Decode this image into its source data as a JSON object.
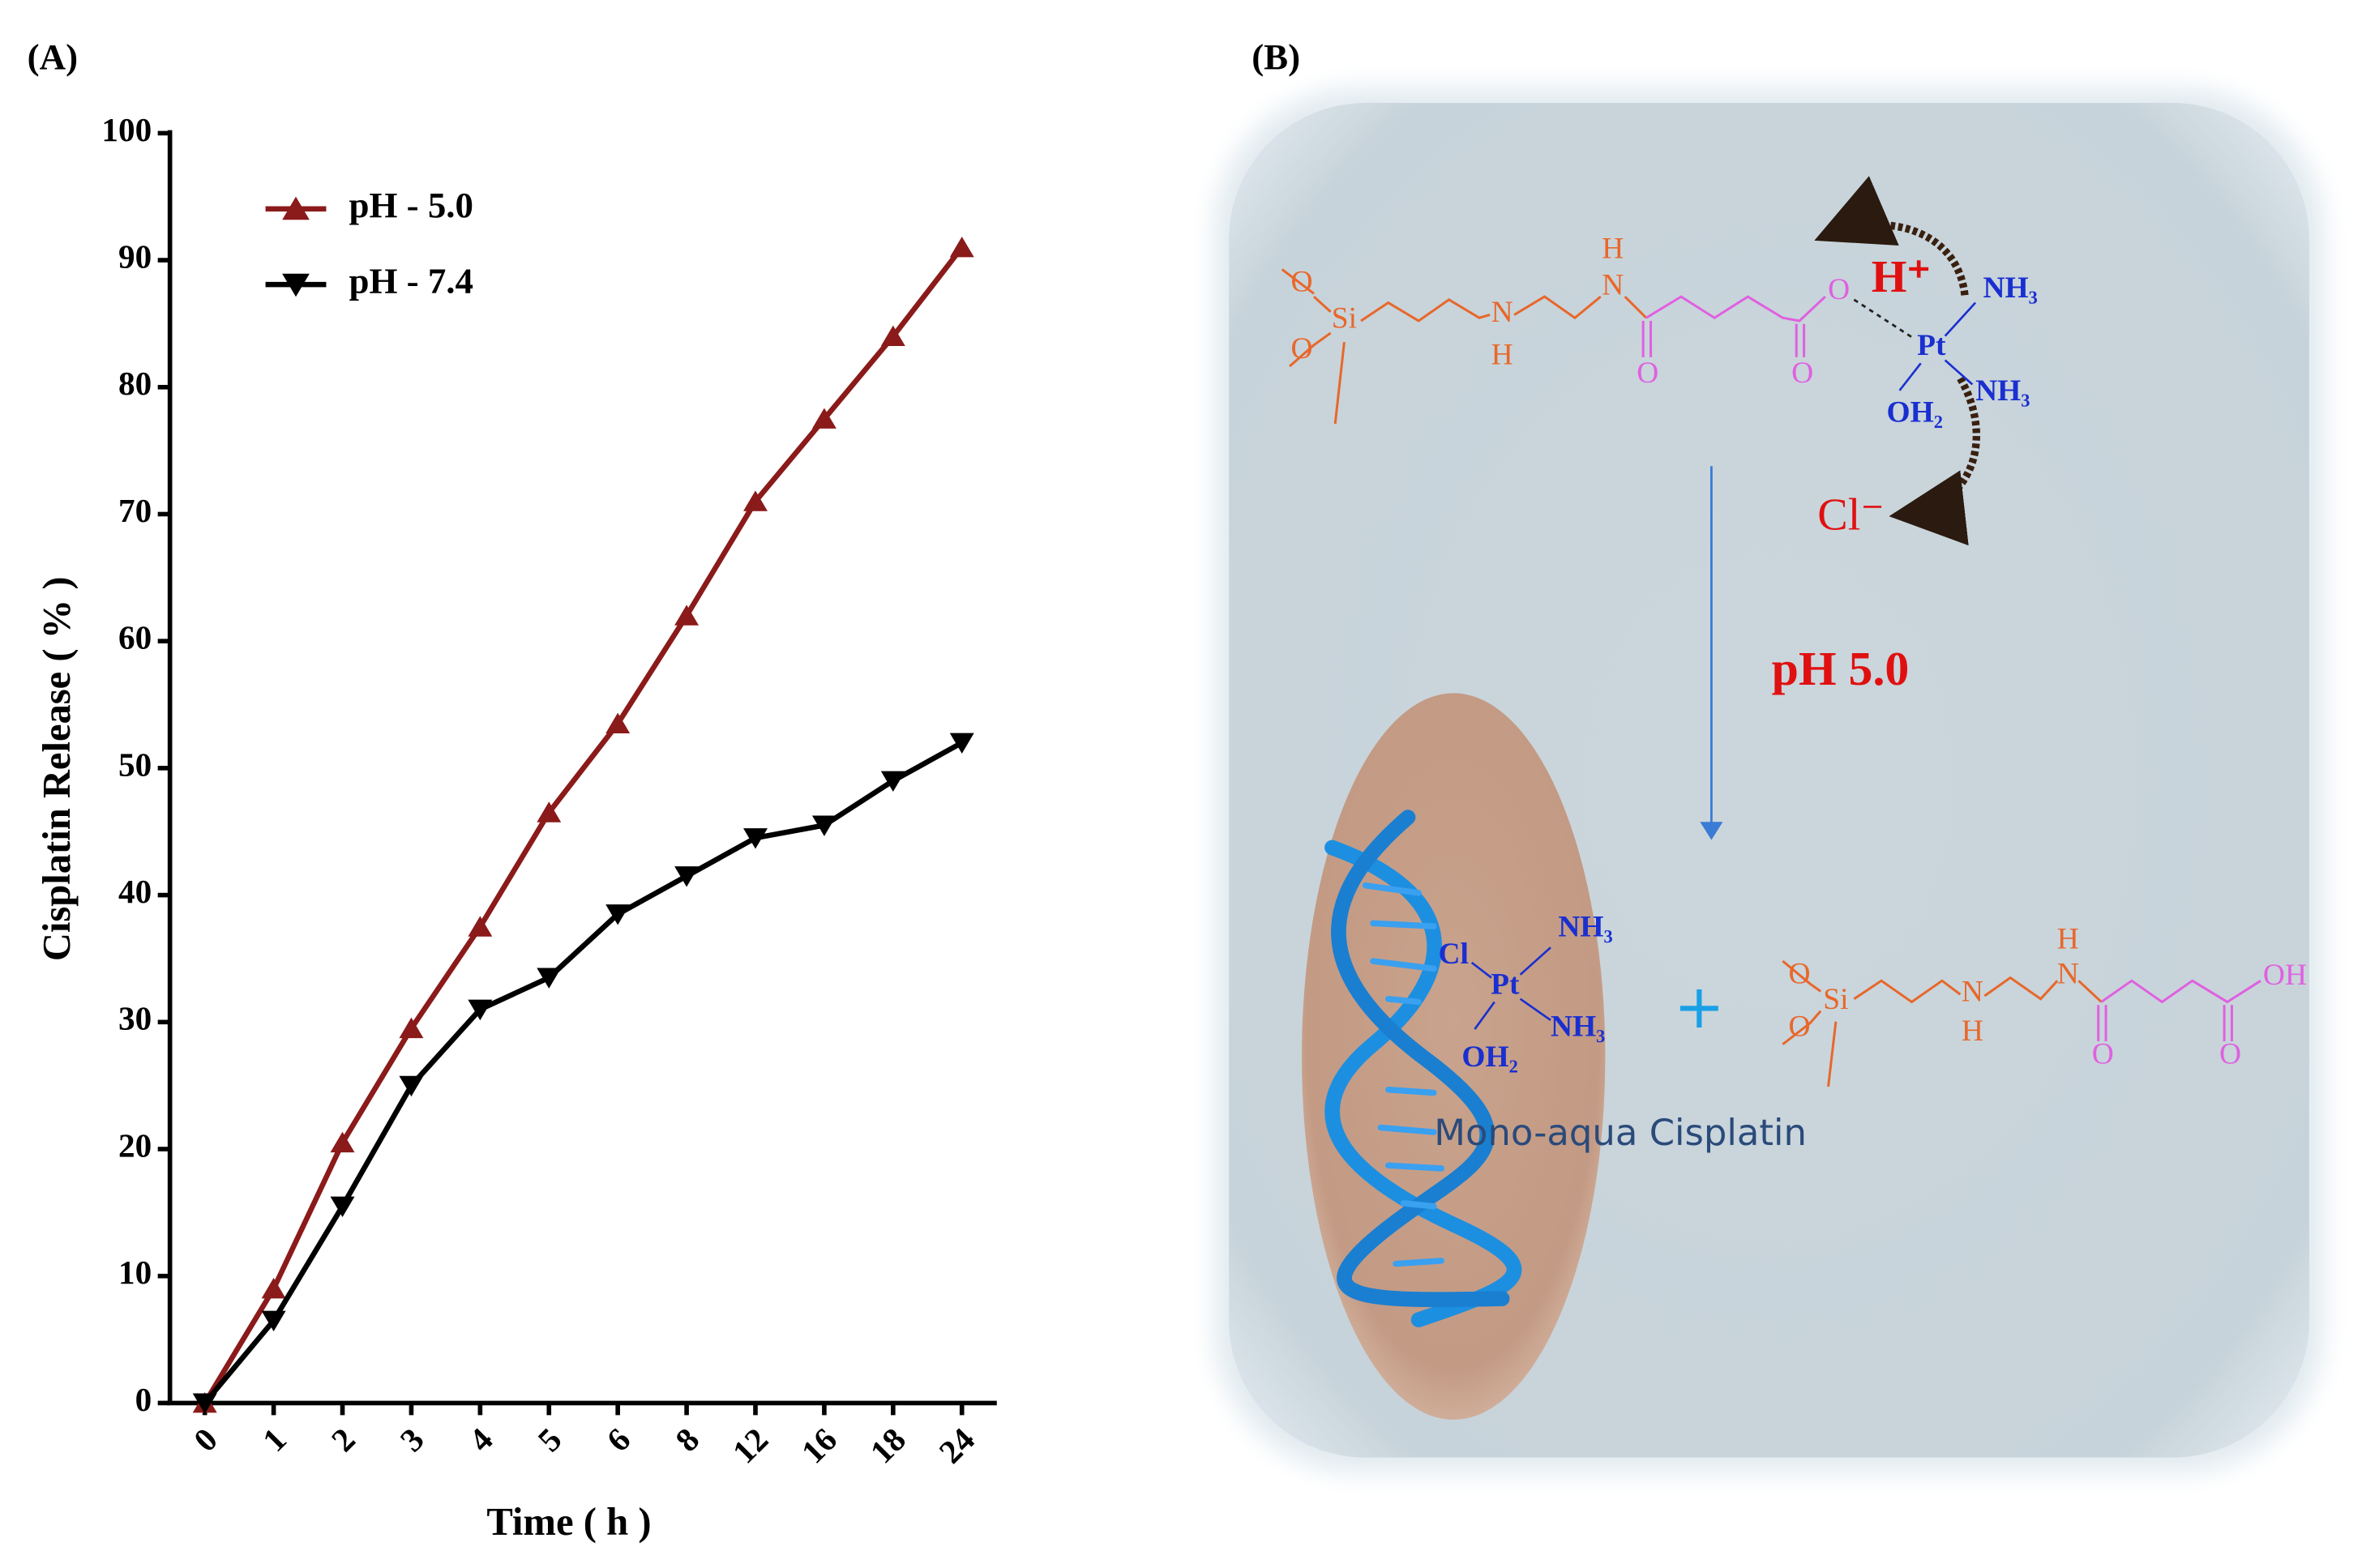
{
  "panel_labels": [
    "(A)",
    "(B)"
  ],
  "chart_data": {
    "type": "line",
    "x_label": "Time ( h )",
    "y_label": "Cisplatin Release ( % )",
    "categories": [
      "0",
      "1",
      "2",
      "3",
      "4",
      "5",
      "6",
      "8",
      "12",
      "16",
      "18",
      "24"
    ],
    "series": [
      {
        "name": "pH - 5.0",
        "color": "#8b1a1a",
        "marker": "triangle-up",
        "values": [
          0,
          9,
          20.5,
          29.5,
          37.5,
          46.5,
          53.5,
          62,
          71,
          77.5,
          84,
          91
        ]
      },
      {
        "name": "pH - 7.4",
        "color": "#000000",
        "marker": "triangle-down",
        "values": [
          0,
          6.5,
          15.5,
          25,
          31,
          33.5,
          38.5,
          41.5,
          44.5,
          45.5,
          49,
          52
        ]
      }
    ],
    "ylim": [
      0,
      100
    ],
    "yticks": [
      0,
      10,
      20,
      30,
      40,
      50,
      60,
      70,
      80,
      90,
      100
    ],
    "legend": "upper-left"
  },
  "diagram": {
    "condition": "pH 5.0",
    "proton": "H⁺",
    "chloride": "Cl⁻",
    "plus": "+",
    "product_label": "Mono-aqua Cisplatin",
    "reactant": {
      "atoms": [
        "O",
        "Si",
        "O",
        "N",
        "H",
        "H",
        "N",
        "O",
        "O",
        "O",
        "Pt",
        "NH₃",
        "NH₃",
        "OH₂"
      ]
    },
    "product_complex": {
      "atoms": [
        "Cl",
        "Pt",
        "NH₃",
        "NH₃",
        "OH₂"
      ]
    },
    "released_linker": {
      "atoms": [
        "O",
        "Si",
        "O",
        "N",
        "H",
        "H",
        "N",
        "O",
        "O",
        "OH"
      ]
    }
  }
}
